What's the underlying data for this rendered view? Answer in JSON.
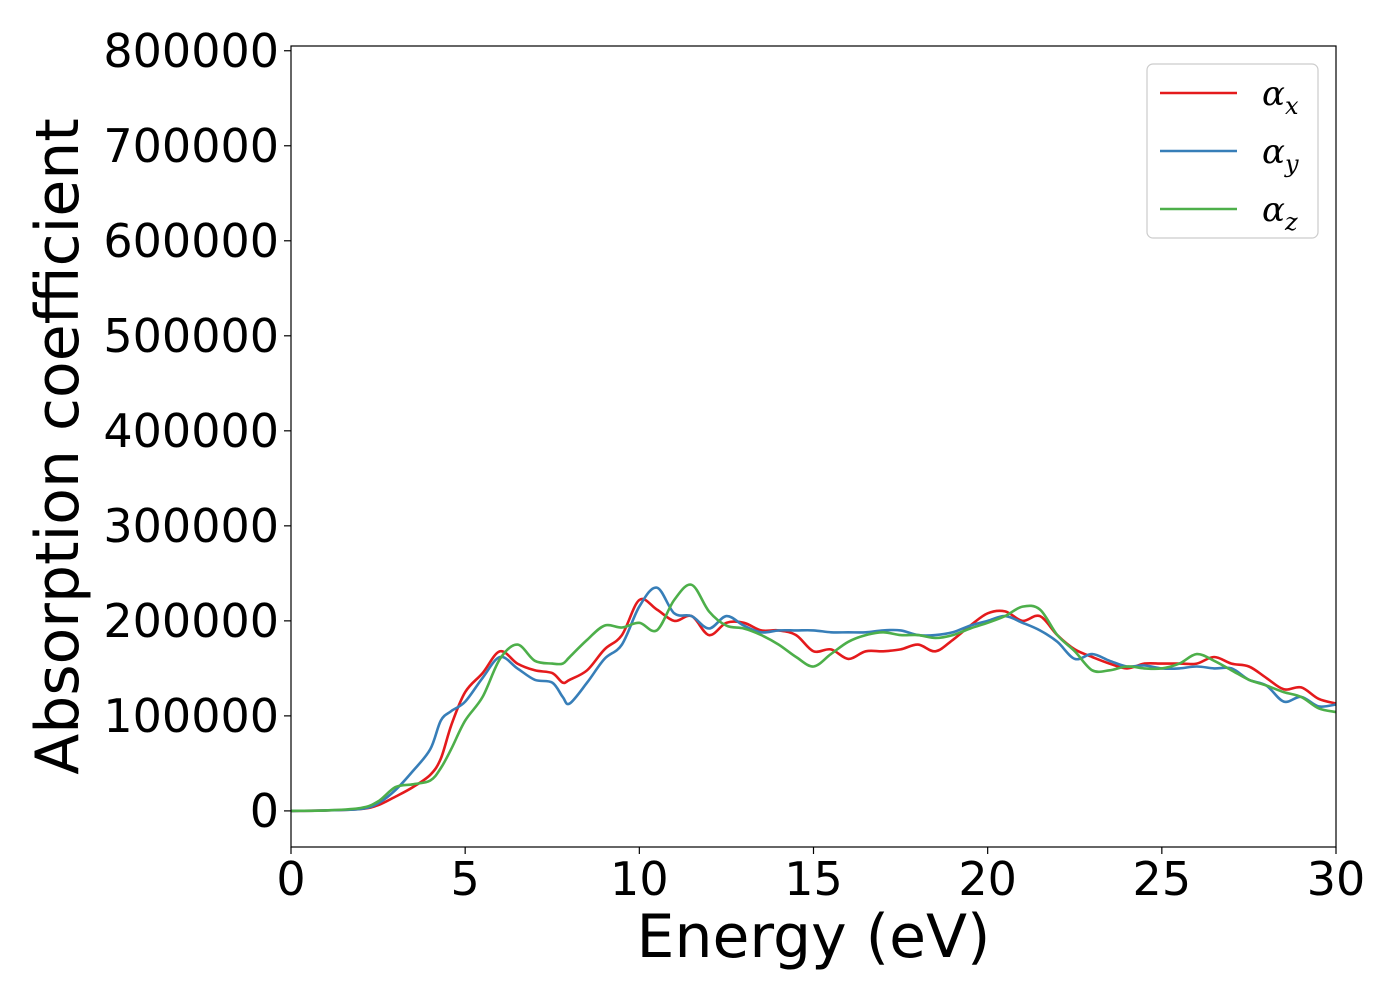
{
  "chart_data": {
    "type": "line",
    "xlabel": "Energy (eV)",
    "ylabel": "Absorption coefficient",
    "xlim": [
      0,
      30
    ],
    "ylim": [
      -38000,
      805000
    ],
    "xticks": [
      0,
      5,
      10,
      15,
      20,
      25,
      30
    ],
    "xtick_labels": [
      "0",
      "5",
      "10",
      "15",
      "20",
      "25",
      "30"
    ],
    "yticks": [
      0,
      100000,
      200000,
      300000,
      400000,
      500000,
      600000,
      700000,
      800000
    ],
    "ytick_labels": [
      "0",
      "100000",
      "200000",
      "300000",
      "400000",
      "500000",
      "600000",
      "700000",
      "800000"
    ],
    "grid": false,
    "legend_position": "top-right",
    "series": [
      {
        "name": "α_x",
        "legend_base": "α",
        "legend_sub": "x",
        "color": "#e41a1c",
        "x": [
          0,
          1,
          2,
          2.5,
          3,
          3.5,
          4,
          4.3,
          4.6,
          5,
          5.5,
          6,
          6.5,
          7,
          7.5,
          7.8,
          8,
          8.5,
          9,
          9.5,
          10,
          10.5,
          11,
          11.5,
          12,
          12.5,
          13,
          13.5,
          14,
          14.5,
          15,
          15.5,
          16,
          16.5,
          17,
          17.5,
          18,
          18.5,
          19,
          19.5,
          20,
          20.5,
          21,
          21.5,
          22,
          22.5,
          23,
          23.5,
          24,
          24.5,
          25,
          25.5,
          26,
          26.5,
          27,
          27.5,
          28,
          28.5,
          29,
          29.5,
          30
        ],
        "y": [
          0,
          500,
          2000,
          6000,
          15000,
          25000,
          38000,
          55000,
          90000,
          125000,
          145000,
          168000,
          155000,
          148000,
          145000,
          135000,
          138000,
          148000,
          170000,
          185000,
          222000,
          212000,
          200000,
          205000,
          185000,
          198000,
          198000,
          190000,
          190000,
          185000,
          168000,
          170000,
          160000,
          168000,
          168000,
          170000,
          175000,
          168000,
          180000,
          195000,
          208000,
          210000,
          200000,
          205000,
          185000,
          170000,
          162000,
          155000,
          150000,
          155000,
          155000,
          155000,
          155000,
          162000,
          155000,
          152000,
          140000,
          128000,
          130000,
          118000,
          113000
        ]
      },
      {
        "name": "α_y",
        "legend_base": "α",
        "legend_sub": "y",
        "color": "#377eb8",
        "x": [
          0,
          1,
          2,
          2.5,
          3,
          3.5,
          4,
          4.3,
          4.6,
          5,
          5.5,
          6,
          6.5,
          7,
          7.5,
          7.8,
          8,
          8.5,
          9,
          9.5,
          10,
          10.5,
          11,
          11.5,
          12,
          12.5,
          13,
          13.5,
          14,
          14.5,
          15,
          15.5,
          16,
          16.5,
          17,
          17.5,
          18,
          18.5,
          19,
          19.5,
          20,
          20.5,
          21,
          21.5,
          22,
          22.5,
          23,
          23.5,
          24,
          24.5,
          25,
          25.5,
          26,
          26.5,
          27,
          27.5,
          28,
          28.5,
          29,
          29.5,
          30
        ],
        "y": [
          0,
          500,
          2000,
          8000,
          22000,
          42000,
          65000,
          95000,
          105000,
          115000,
          140000,
          162000,
          150000,
          138000,
          135000,
          120000,
          113000,
          135000,
          160000,
          175000,
          215000,
          235000,
          208000,
          205000,
          192000,
          205000,
          195000,
          188000,
          190000,
          190000,
          190000,
          188000,
          188000,
          188000,
          190000,
          190000,
          185000,
          185000,
          188000,
          195000,
          200000,
          205000,
          198000,
          190000,
          178000,
          160000,
          165000,
          158000,
          152000,
          153000,
          150000,
          150000,
          152000,
          150000,
          150000,
          138000,
          132000,
          115000,
          120000,
          110000,
          112000
        ]
      },
      {
        "name": "α_z",
        "legend_base": "α",
        "legend_sub": "z",
        "color": "#4daf4a",
        "x": [
          0,
          1,
          2,
          2.5,
          3,
          3.5,
          4,
          4.3,
          4.6,
          5,
          5.5,
          6,
          6.5,
          7,
          7.5,
          7.8,
          8,
          8.5,
          9,
          9.5,
          10,
          10.5,
          11,
          11.5,
          12,
          12.5,
          13,
          13.5,
          14,
          14.5,
          15,
          15.5,
          16,
          16.5,
          17,
          17.5,
          18,
          18.5,
          19,
          19.5,
          20,
          20.5,
          21,
          21.5,
          22,
          22.5,
          23,
          23.5,
          24,
          24.5,
          25,
          25.5,
          26,
          26.5,
          27,
          27.5,
          28,
          28.5,
          29,
          29.5,
          30
        ],
        "y": [
          0,
          500,
          3000,
          10000,
          25000,
          28000,
          32000,
          45000,
          65000,
          95000,
          120000,
          160000,
          175000,
          158000,
          155000,
          155000,
          162000,
          180000,
          195000,
          193000,
          198000,
          190000,
          222000,
          238000,
          210000,
          195000,
          192000,
          185000,
          175000,
          162000,
          152000,
          165000,
          178000,
          185000,
          188000,
          185000,
          185000,
          182000,
          185000,
          192000,
          198000,
          205000,
          215000,
          212000,
          185000,
          168000,
          148000,
          148000,
          152000,
          150000,
          150000,
          155000,
          165000,
          158000,
          148000,
          138000,
          132000,
          125000,
          120000,
          108000,
          104000
        ]
      }
    ]
  }
}
